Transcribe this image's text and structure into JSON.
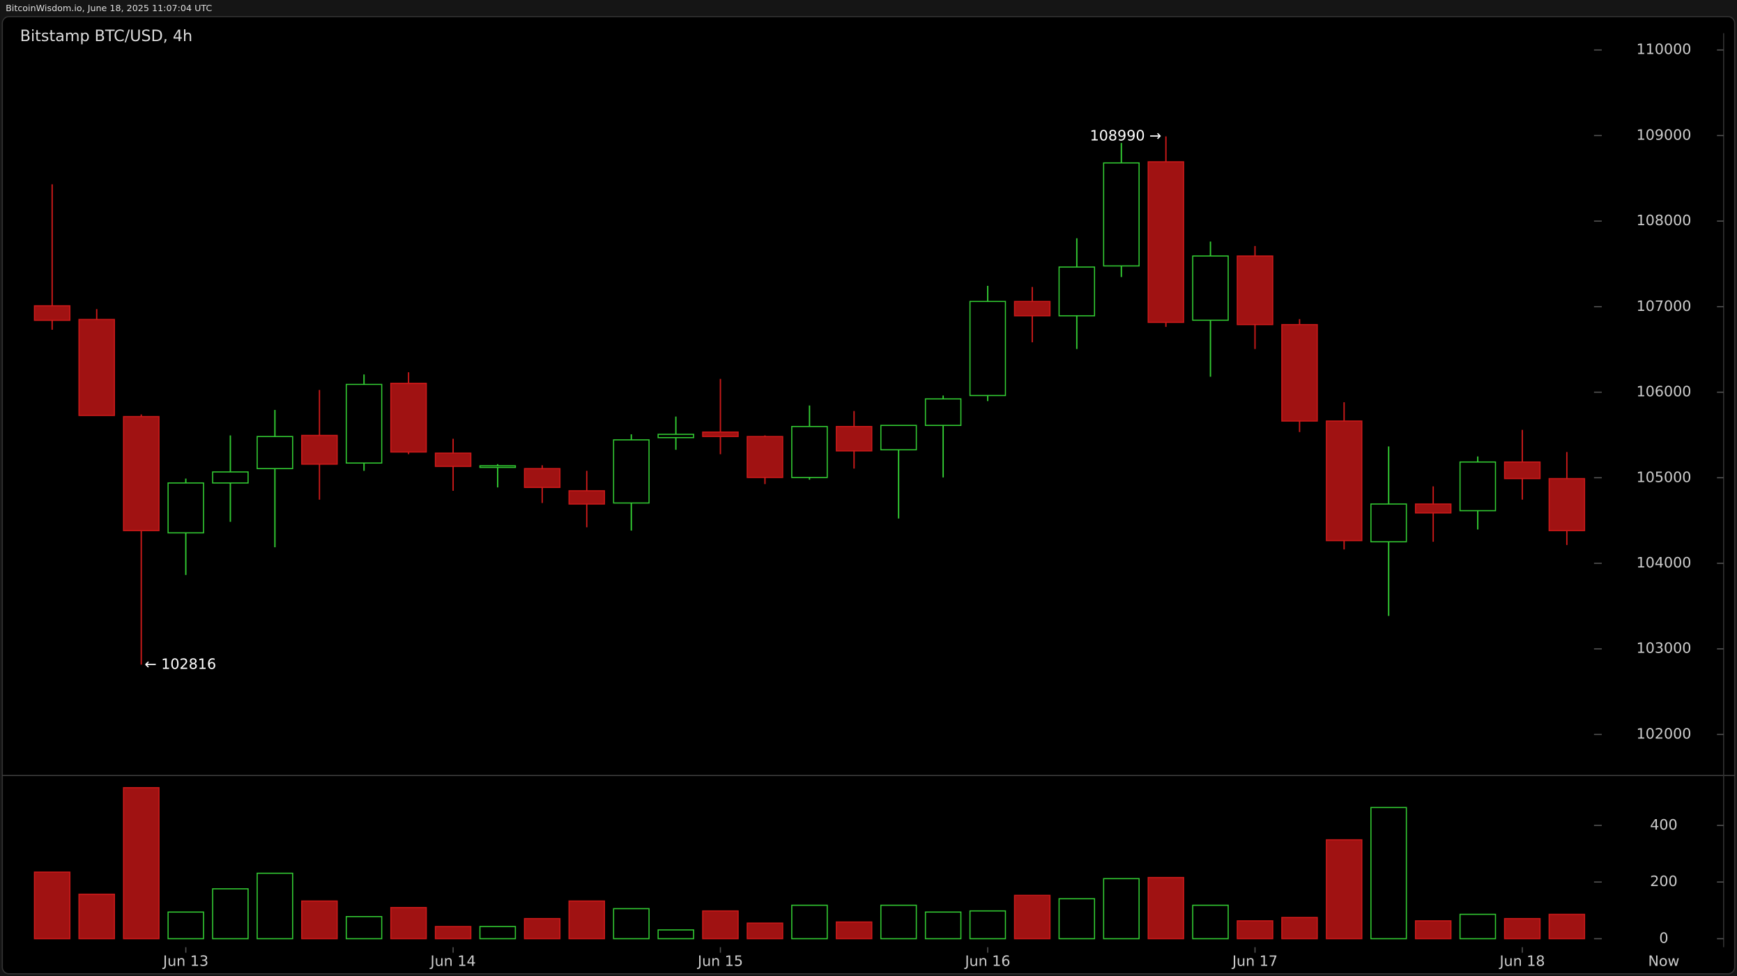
{
  "header": "BitcoinWisdom.io, June 18, 2025 11:07:04 UTC",
  "chart_data": [
    {
      "type": "candlestick",
      "title": "Bitstamp BTC/USD, 4h",
      "categories": [
        null,
        null,
        null,
        "Jun 13",
        null,
        null,
        null,
        null,
        null,
        "Jun 14",
        null,
        null,
        null,
        null,
        null,
        "Jun 15",
        null,
        null,
        null,
        null,
        null,
        "Jun 16",
        null,
        null,
        null,
        null,
        null,
        "Jun 17",
        null,
        null,
        null,
        null,
        null,
        "Jun 18",
        null
      ],
      "now_label": "Now",
      "open": [
        107010,
        106850,
        105715,
        104356,
        104939,
        105107,
        105495,
        105172,
        106104,
        105288,
        105133,
        105107,
        104848,
        104705,
        105469,
        105534,
        105482,
        105003,
        105599,
        105327,
        105612,
        105961,
        107061,
        106893,
        107476,
        108693,
        106841,
        107592,
        106790,
        105663,
        104252,
        104693,
        104615,
        105184,
        104990
      ],
      "high": [
        108430,
        106971,
        105740,
        104990,
        105495,
        105793,
        106026,
        106207,
        106233,
        105456,
        105159,
        105146,
        105081,
        105508,
        105715,
        106155,
        105495,
        105845,
        105780,
        105612,
        105961,
        107243,
        107230,
        107799,
        108913,
        108990,
        107761,
        107709,
        106854,
        105883,
        105366,
        104900,
        105249,
        105560,
        105301
      ],
      "low": [
        106730,
        105730,
        102816,
        103864,
        104485,
        104188,
        104744,
        105081,
        105275,
        104848,
        104887,
        104705,
        104421,
        104382,
        105327,
        105275,
        104926,
        104977,
        105107,
        104524,
        105003,
        105896,
        106583,
        106505,
        107346,
        106764,
        106181,
        106505,
        105534,
        104162,
        103385,
        104252,
        104395,
        104744,
        104214
      ],
      "close": [
        106840,
        105728,
        104382,
        104939,
        105068,
        105482,
        105159,
        106091,
        105301,
        105133,
        105140,
        104887,
        104693,
        105443,
        105508,
        105482,
        105003,
        105599,
        105314,
        105612,
        105922,
        107061,
        106893,
        107463,
        108680,
        106816,
        107592,
        106790,
        105663,
        104265,
        104693,
        104589,
        105184,
        104990,
        104382
      ],
      "up_color": "#33cc33",
      "down_color": "#a01212",
      "high_label": "108990 →",
      "low_label": "← 102816",
      "ylim": [
        101520,
        110390
      ],
      "yticks": [
        102000,
        103000,
        104000,
        105000,
        106000,
        107000,
        108000,
        109000,
        110000
      ]
    },
    {
      "type": "bar",
      "values": [
        235,
        157,
        533,
        94,
        176,
        231,
        133,
        78,
        110,
        43,
        43,
        71,
        133,
        106,
        31,
        98,
        55,
        118,
        59,
        118,
        94,
        98,
        153,
        141,
        212,
        216,
        118,
        63,
        75,
        349,
        463,
        63,
        86,
        71,
        86
      ],
      "ylim": [
        -30,
        576
      ],
      "yticks": [
        0,
        200,
        400
      ]
    }
  ]
}
